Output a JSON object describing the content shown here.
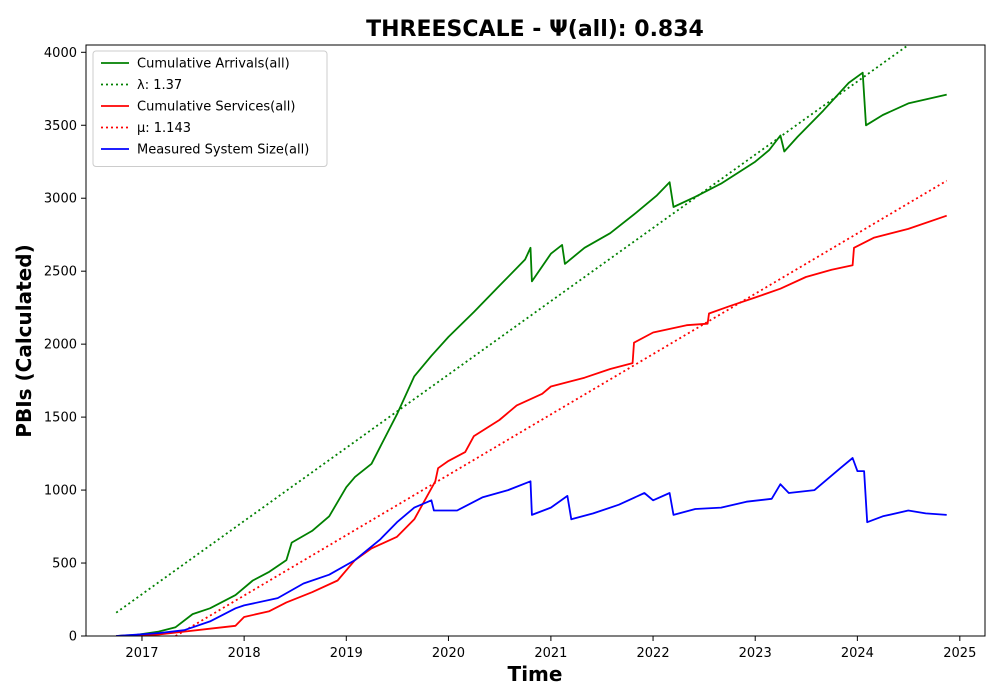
{
  "chart_data": {
    "type": "line",
    "title": "THREESCALE -  Ψ(all): 0.834",
    "xlabel": "Time",
    "ylabel": "PBIs (Calculated)",
    "xlim": [
      "2016-06-15",
      "2025-04-01"
    ],
    "ylim": [
      0,
      4050
    ],
    "x_ticks": [
      "2017",
      "2018",
      "2019",
      "2020",
      "2021",
      "2022",
      "2023",
      "2024",
      "2025"
    ],
    "y_ticks": [
      0,
      500,
      1000,
      1500,
      2000,
      2500,
      3000,
      3500,
      4000
    ],
    "grid": false,
    "legend_position": "top-left",
    "series": [
      {
        "name": "Cumulative Arrivals(all)",
        "color": "#008000",
        "style": "solid",
        "points": [
          [
            "2016-10-01",
            0
          ],
          [
            "2016-12-15",
            8
          ],
          [
            "2017-03-01",
            30
          ],
          [
            "2017-05-01",
            60
          ],
          [
            "2017-07-01",
            150
          ],
          [
            "2017-09-01",
            190
          ],
          [
            "2017-12-01",
            280
          ],
          [
            "2018-02-01",
            380
          ],
          [
            "2018-04-01",
            440
          ],
          [
            "2018-06-01",
            520
          ],
          [
            "2018-06-20",
            640
          ],
          [
            "2018-09-01",
            720
          ],
          [
            "2018-11-01",
            820
          ],
          [
            "2019-01-01",
            1020
          ],
          [
            "2019-02-01",
            1090
          ],
          [
            "2019-04-01",
            1180
          ],
          [
            "2019-07-01",
            1520
          ],
          [
            "2019-09-01",
            1780
          ],
          [
            "2019-11-01",
            1920
          ],
          [
            "2020-01-01",
            2050
          ],
          [
            "2020-04-01",
            2220
          ],
          [
            "2020-07-01",
            2400
          ],
          [
            "2020-10-01",
            2580
          ],
          [
            "2020-10-20",
            2660
          ],
          [
            "2020-10-25",
            2430
          ],
          [
            "2021-01-01",
            2620
          ],
          [
            "2021-02-10",
            2680
          ],
          [
            "2021-02-20",
            2550
          ],
          [
            "2021-05-01",
            2660
          ],
          [
            "2021-08-01",
            2760
          ],
          [
            "2021-11-01",
            2900
          ],
          [
            "2022-01-15",
            3020
          ],
          [
            "2022-03-01",
            3110
          ],
          [
            "2022-03-15",
            2940
          ],
          [
            "2022-06-01",
            3010
          ],
          [
            "2022-09-01",
            3100
          ],
          [
            "2023-01-01",
            3250
          ],
          [
            "2023-02-20",
            3330
          ],
          [
            "2023-04-01",
            3430
          ],
          [
            "2023-04-15",
            3320
          ],
          [
            "2023-06-01",
            3420
          ],
          [
            "2023-09-01",
            3600
          ],
          [
            "2023-12-01",
            3790
          ],
          [
            "2024-01-20",
            3860
          ],
          [
            "2024-02-01",
            3500
          ],
          [
            "2024-04-01",
            3570
          ],
          [
            "2024-07-01",
            3650
          ],
          [
            "2024-10-01",
            3690
          ],
          [
            "2024-11-15",
            3710
          ]
        ]
      },
      {
        "name": "λ: 1.37",
        "color": "#008000",
        "style": "dotted",
        "points": [
          [
            "2016-10-01",
            160
          ],
          [
            "2024-07-01",
            4050
          ]
        ]
      },
      {
        "name": "Cumulative Services(all)",
        "color": "#ff0000",
        "style": "solid",
        "points": [
          [
            "2016-10-01",
            0
          ],
          [
            "2017-03-01",
            10
          ],
          [
            "2017-06-01",
            30
          ],
          [
            "2017-09-01",
            50
          ],
          [
            "2017-12-01",
            70
          ],
          [
            "2018-01-01",
            130
          ],
          [
            "2018-04-01",
            170
          ],
          [
            "2018-06-01",
            230
          ],
          [
            "2018-09-01",
            300
          ],
          [
            "2018-12-01",
            380
          ],
          [
            "2019-02-01",
            520
          ],
          [
            "2019-04-01",
            600
          ],
          [
            "2019-07-01",
            680
          ],
          [
            "2019-09-01",
            800
          ],
          [
            "2019-11-15",
            1060
          ],
          [
            "2019-11-25",
            1150
          ],
          [
            "2020-01-01",
            1200
          ],
          [
            "2020-03-01",
            1260
          ],
          [
            "2020-04-01",
            1370
          ],
          [
            "2020-07-01",
            1480
          ],
          [
            "2020-09-01",
            1580
          ],
          [
            "2020-12-01",
            1660
          ],
          [
            "2021-01-01",
            1710
          ],
          [
            "2021-05-01",
            1770
          ],
          [
            "2021-08-01",
            1830
          ],
          [
            "2021-10-20",
            1870
          ],
          [
            "2021-10-25",
            2010
          ],
          [
            "2022-01-01",
            2080
          ],
          [
            "2022-05-01",
            2130
          ],
          [
            "2022-07-15",
            2140
          ],
          [
            "2022-07-20",
            2210
          ],
          [
            "2022-10-01",
            2260
          ],
          [
            "2023-01-01",
            2320
          ],
          [
            "2023-04-01",
            2380
          ],
          [
            "2023-07-01",
            2460
          ],
          [
            "2023-10-01",
            2510
          ],
          [
            "2023-12-15",
            2540
          ],
          [
            "2023-12-20",
            2660
          ],
          [
            "2024-03-01",
            2730
          ],
          [
            "2024-07-01",
            2790
          ],
          [
            "2024-11-15",
            2880
          ]
        ]
      },
      {
        "name": "μ: 1.143",
        "color": "#ff0000",
        "style": "dotted",
        "points": [
          [
            "2017-05-01",
            0
          ],
          [
            "2024-11-15",
            3120
          ]
        ]
      },
      {
        "name": "Measured System Size(all)",
        "color": "#0000ff",
        "style": "solid",
        "points": [
          [
            "2016-10-01",
            0
          ],
          [
            "2017-03-01",
            20
          ],
          [
            "2017-06-01",
            40
          ],
          [
            "2017-09-01",
            100
          ],
          [
            "2017-12-01",
            190
          ],
          [
            "2018-01-01",
            210
          ],
          [
            "2018-05-01",
            260
          ],
          [
            "2018-08-01",
            360
          ],
          [
            "2018-11-01",
            420
          ],
          [
            "2019-02-01",
            520
          ],
          [
            "2019-05-01",
            660
          ],
          [
            "2019-07-01",
            780
          ],
          [
            "2019-09-01",
            880
          ],
          [
            "2019-11-01",
            930
          ],
          [
            "2019-11-10",
            860
          ],
          [
            "2020-02-01",
            860
          ],
          [
            "2020-05-01",
            950
          ],
          [
            "2020-08-01",
            1000
          ],
          [
            "2020-10-20",
            1060
          ],
          [
            "2020-10-25",
            830
          ],
          [
            "2021-01-01",
            880
          ],
          [
            "2021-03-01",
            960
          ],
          [
            "2021-03-15",
            800
          ],
          [
            "2021-06-01",
            840
          ],
          [
            "2021-09-01",
            900
          ],
          [
            "2021-12-01",
            980
          ],
          [
            "2022-01-01",
            930
          ],
          [
            "2022-03-01",
            980
          ],
          [
            "2022-03-15",
            830
          ],
          [
            "2022-06-01",
            870
          ],
          [
            "2022-09-01",
            880
          ],
          [
            "2022-12-01",
            920
          ],
          [
            "2023-03-01",
            940
          ],
          [
            "2023-04-01",
            1040
          ],
          [
            "2023-05-01",
            980
          ],
          [
            "2023-08-01",
            1000
          ],
          [
            "2023-11-01",
            1150
          ],
          [
            "2023-12-15",
            1220
          ],
          [
            "2024-01-01",
            1130
          ],
          [
            "2024-01-25",
            1130
          ],
          [
            "2024-02-05",
            780
          ],
          [
            "2024-04-01",
            820
          ],
          [
            "2024-07-01",
            860
          ],
          [
            "2024-09-01",
            840
          ],
          [
            "2024-11-15",
            830
          ]
        ]
      }
    ]
  }
}
